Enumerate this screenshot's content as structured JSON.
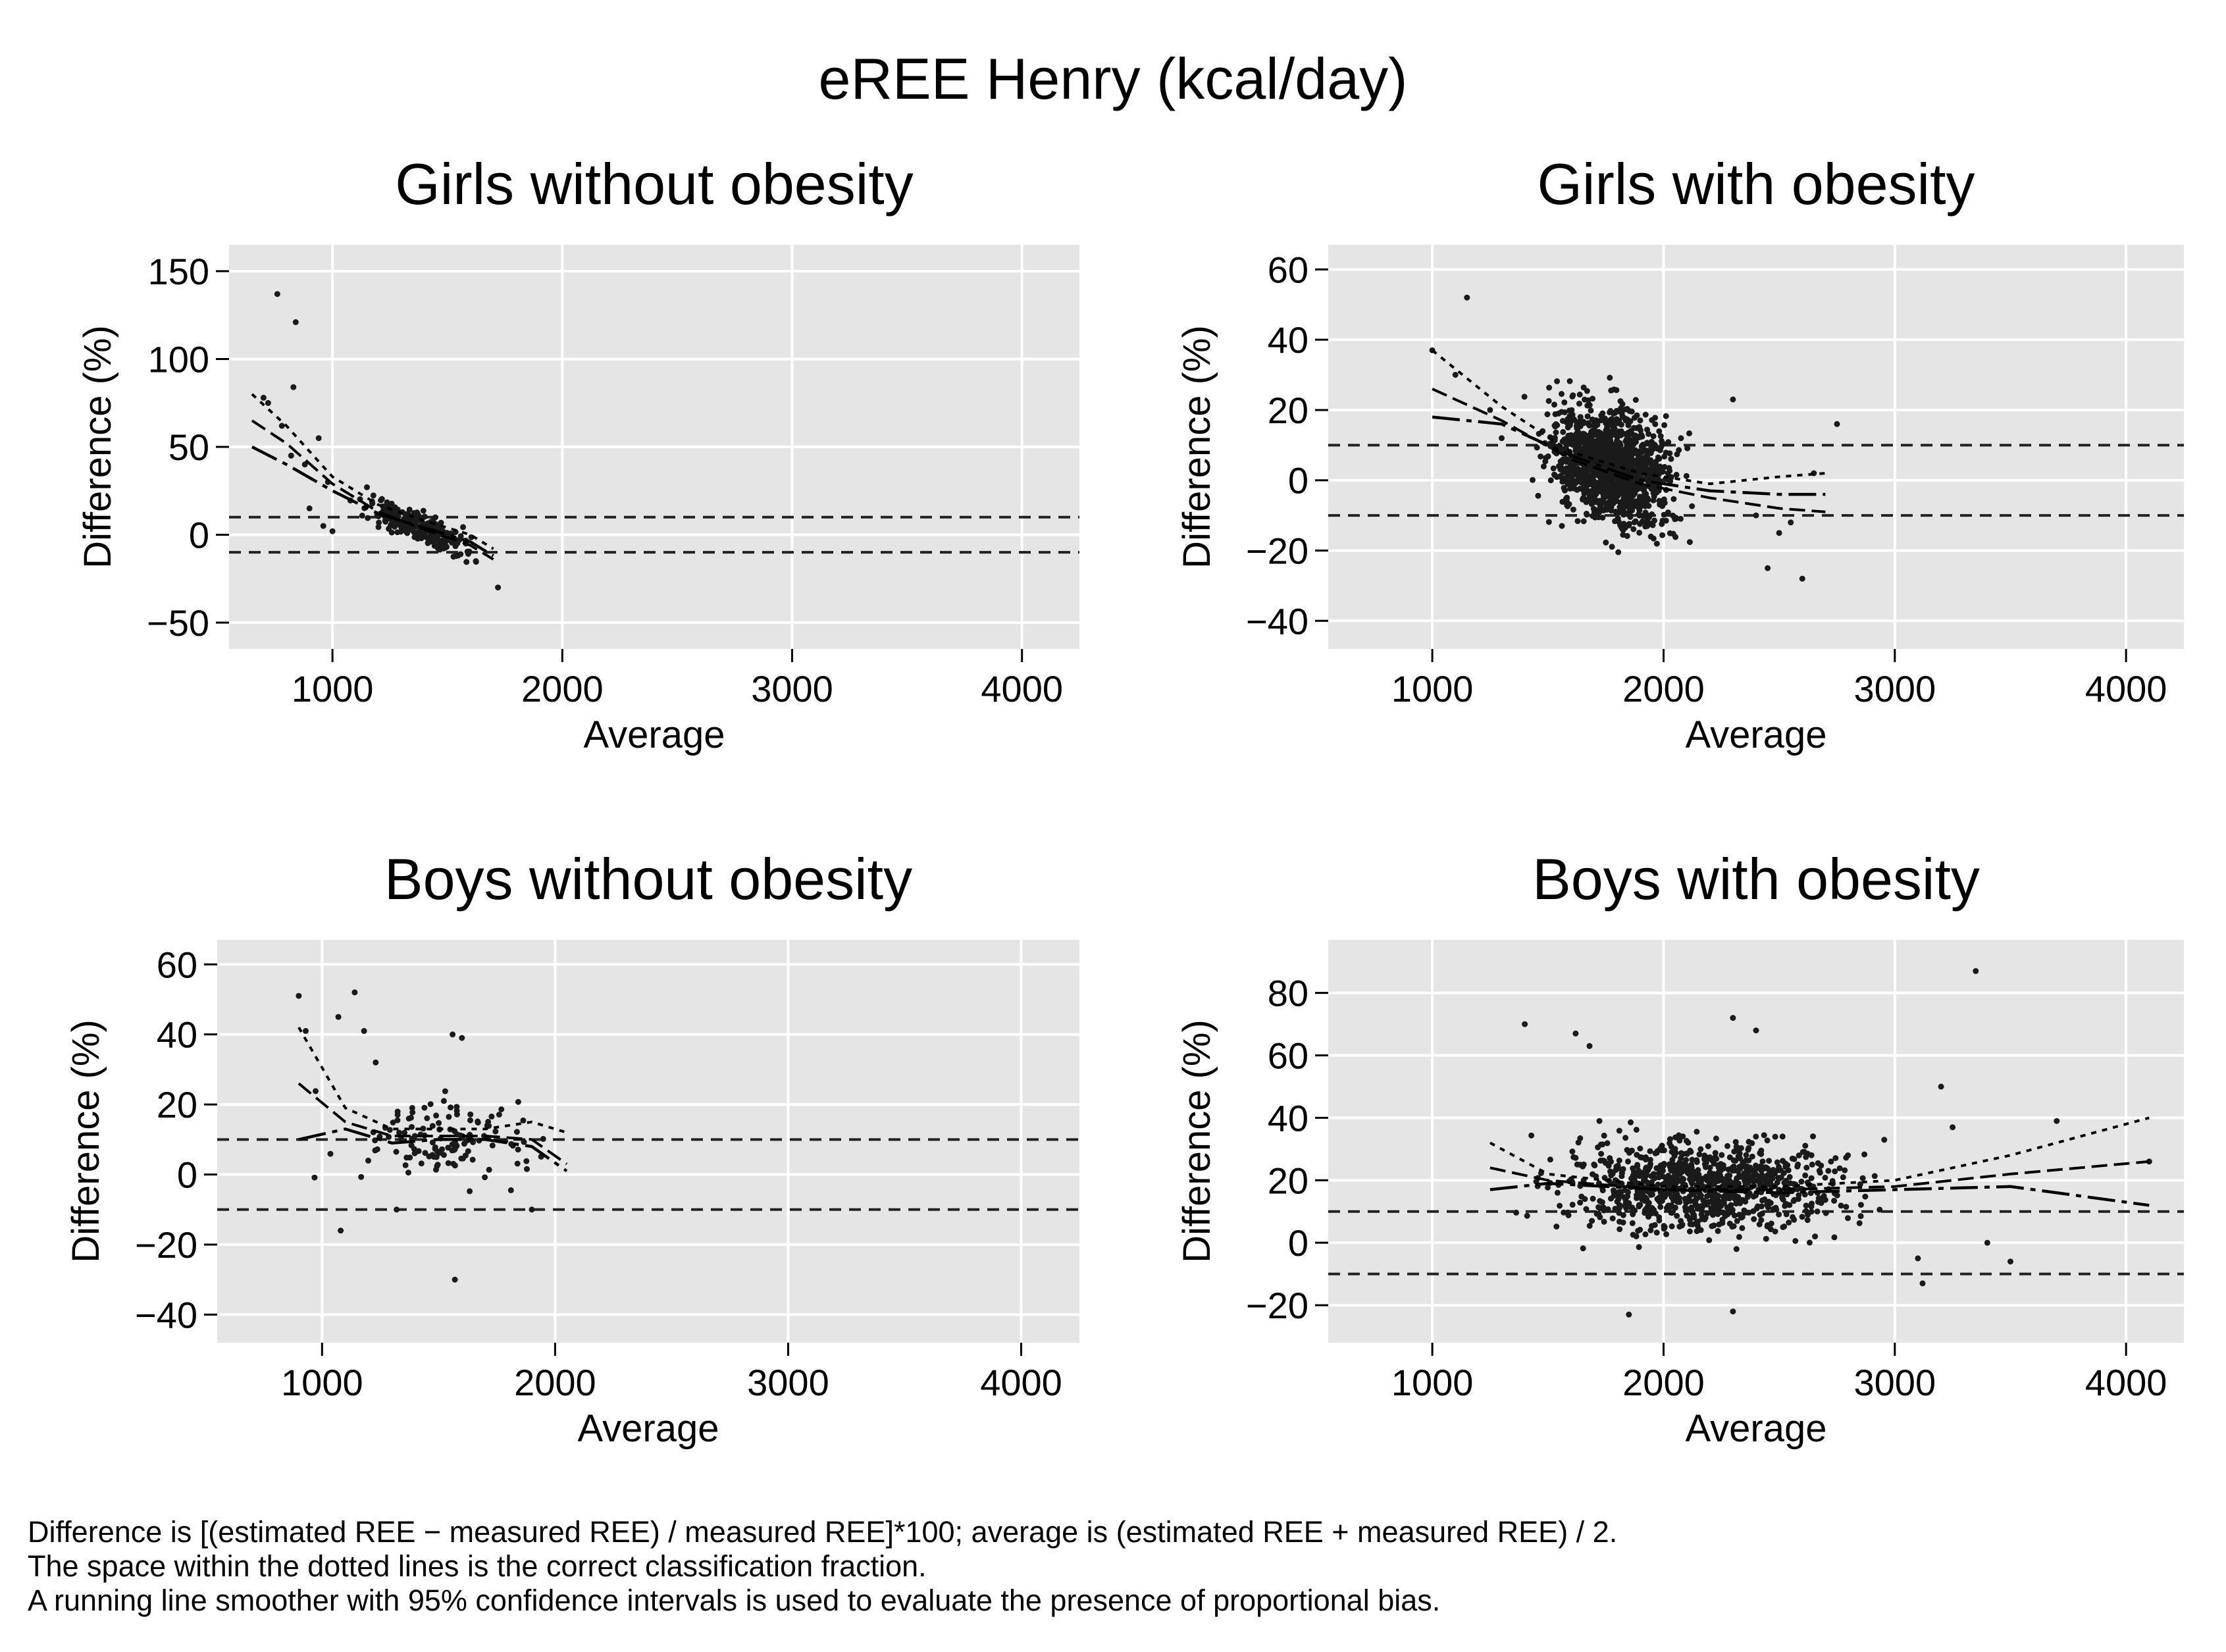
{
  "figure": {
    "title": "eREE Henry (kcal/day)",
    "footnotes": [
      "Difference is [(estimated REE − measured REE) / measured REE]*100; average is (estimated REE + measured REE) / 2.",
      "The space within the dotted lines is the correct classification fraction.",
      "A running line smoother with 95% confidence intervals is used to evaluate the presence of proportional bias."
    ],
    "colors": {
      "plot_bg": "#e5e5e5",
      "grid": "#ffffff",
      "points": "#1a1a1a",
      "lines": "#000000"
    }
  },
  "chart_data": [
    {
      "type": "scatter",
      "title": "Girls without obesity",
      "xlabel": "Average",
      "ylabel": "Difference (%)",
      "xlim": [
        550,
        4250
      ],
      "ylim": [
        -65,
        165
      ],
      "xticks": [
        1000,
        2000,
        3000,
        4000
      ],
      "yticks": [
        -50,
        0,
        50,
        100,
        150
      ],
      "grid": true,
      "reference_lines": [
        10,
        -10
      ],
      "cloud": {
        "n": 260,
        "x_range": [
          1050,
          1680
        ],
        "slope": [
          1350,
          6,
          -0.055
        ],
        "spread": 6
      },
      "outliers": [
        [
          760,
          137
        ],
        [
          840,
          121
        ],
        [
          830,
          84
        ],
        [
          700,
          78
        ],
        [
          720,
          75
        ],
        [
          780,
          62
        ],
        [
          820,
          45
        ],
        [
          880,
          40
        ],
        [
          940,
          55
        ],
        [
          980,
          30
        ],
        [
          1720,
          -30
        ],
        [
          900,
          15
        ],
        [
          960,
          5
        ],
        [
          1000,
          2
        ]
      ],
      "smoother": {
        "x": [
          650,
          800,
          1000,
          1200,
          1400,
          1600,
          1700
        ],
        "y": [
          50,
          40,
          25,
          12,
          4,
          -4,
          -12
        ]
      },
      "ci_upper": {
        "x": [
          650,
          800,
          1000,
          1200,
          1400,
          1600,
          1700
        ],
        "y": [
          80,
          62,
          33,
          17,
          8,
          0,
          -8
        ]
      },
      "ci_lower": {
        "x": [
          650,
          800,
          1000,
          1200,
          1400,
          1600,
          1700
        ],
        "y": [
          65,
          52,
          29,
          13,
          3,
          -6,
          -14
        ]
      }
    },
    {
      "type": "scatter",
      "title": "Girls with obesity",
      "xlabel": "Average",
      "ylabel": "Difference (%)",
      "xlim": [
        550,
        4250
      ],
      "ylim": [
        -48,
        67
      ],
      "xticks": [
        1000,
        2000,
        3000,
        4000
      ],
      "yticks": [
        -40,
        -20,
        0,
        20,
        40,
        60
      ],
      "grid": true,
      "reference_lines": [
        10,
        -10
      ],
      "cloud": {
        "n": 1300,
        "x_range": [
          1400,
          2150
        ],
        "slope": [
          1700,
          5,
          -0.018
        ],
        "spread": 11
      },
      "outliers": [
        [
          1150,
          52
        ],
        [
          1000,
          37
        ],
        [
          1100,
          30
        ],
        [
          1250,
          20
        ],
        [
          1300,
          12
        ],
        [
          2300,
          23
        ],
        [
          2400,
          -10
        ],
        [
          2500,
          -15
        ],
        [
          2600,
          -28
        ],
        [
          2750,
          16
        ],
        [
          2650,
          2
        ],
        [
          2450,
          -25
        ],
        [
          2550,
          -12
        ]
      ],
      "smoother": {
        "x": [
          1000,
          1300,
          1600,
          1900,
          2200,
          2500,
          2700
        ],
        "y": [
          18,
          16,
          7,
          0,
          -3,
          -4,
          -4
        ]
      },
      "ci_upper": {
        "x": [
          1000,
          1300,
          1600,
          1900,
          2200,
          2500,
          2700
        ],
        "y": [
          37,
          21,
          8,
          2,
          -1,
          1,
          2
        ]
      },
      "ci_lower": {
        "x": [
          1000,
          1300,
          1600,
          1900,
          2200,
          2500,
          2700
        ],
        "y": [
          26,
          17,
          6,
          -1,
          -5,
          -8,
          -9
        ]
      }
    },
    {
      "type": "scatter",
      "title": "Boys without obesity",
      "xlabel": "Average",
      "ylabel": "Difference (%)",
      "xlim": [
        550,
        4250
      ],
      "ylim": [
        -48,
        67
      ],
      "xticks": [
        1000,
        2000,
        3000,
        4000
      ],
      "yticks": [
        -40,
        -20,
        0,
        20,
        40,
        60
      ],
      "grid": true,
      "reference_lines": [
        10,
        -10
      ],
      "cloud": {
        "n": 130,
        "x_range": [
          950,
          2050
        ],
        "slope": [
          1500,
          10,
          0
        ],
        "spread": 8
      },
      "outliers": [
        [
          900,
          51
        ],
        [
          930,
          41
        ],
        [
          1070,
          45
        ],
        [
          1140,
          52
        ],
        [
          1180,
          41
        ],
        [
          1560,
          40
        ],
        [
          1600,
          39
        ],
        [
          1230,
          32
        ],
        [
          1080,
          -16
        ],
        [
          1570,
          -30
        ],
        [
          1320,
          -10
        ],
        [
          1900,
          -10
        ]
      ],
      "smoother": {
        "x": [
          900,
          1100,
          1300,
          1500,
          1700,
          1900,
          2050
        ],
        "y": [
          10,
          13,
          9,
          10,
          10,
          8,
          1
        ]
      },
      "ci_upper": {
        "x": [
          900,
          1100,
          1300,
          1500,
          1700,
          1900,
          2050
        ],
        "y": [
          42,
          19,
          13,
          13,
          13,
          15,
          12
        ]
      },
      "ci_lower": {
        "x": [
          900,
          1100,
          1300,
          1500,
          1700,
          1900,
          2050
        ],
        "y": [
          26,
          15,
          11,
          11,
          11,
          10,
          3
        ]
      }
    },
    {
      "type": "scatter",
      "title": "Boys with obesity",
      "xlabel": "Average",
      "ylabel": "Difference (%)",
      "xlim": [
        550,
        4250
      ],
      "ylim": [
        -32,
        97
      ],
      "xticks": [
        1000,
        2000,
        3000,
        4000
      ],
      "yticks": [
        -20,
        0,
        20,
        40,
        60,
        80
      ],
      "grid": true,
      "reference_lines": [
        10,
        -10
      ],
      "cloud": {
        "n": 950,
        "x_range": [
          1300,
          3000
        ],
        "slope": [
          2200,
          18,
          0
        ],
        "spread": 10
      },
      "outliers": [
        [
          3350,
          87
        ],
        [
          1400,
          70
        ],
        [
          1620,
          67
        ],
        [
          1680,
          63
        ],
        [
          2300,
          72
        ],
        [
          2400,
          68
        ],
        [
          3200,
          50
        ],
        [
          3250,
          37
        ],
        [
          3500,
          -6
        ],
        [
          3120,
          -13
        ],
        [
          3700,
          39
        ],
        [
          4100,
          26
        ],
        [
          3400,
          0
        ],
        [
          3100,
          -5
        ],
        [
          1850,
          -23
        ],
        [
          2300,
          -22
        ]
      ],
      "smoother": {
        "x": [
          1250,
          1500,
          2000,
          2500,
          3000,
          3500,
          4100
        ],
        "y": [
          17,
          19,
          17,
          16,
          17,
          18,
          12
        ]
      },
      "ci_upper": {
        "x": [
          1250,
          1500,
          2000,
          2500,
          3000,
          3500,
          4100
        ],
        "y": [
          32,
          22,
          18,
          18,
          20,
          28,
          40
        ]
      },
      "ci_lower": {
        "x": [
          1250,
          1500,
          2000,
          2500,
          3000,
          3500,
          4100
        ],
        "y": [
          24,
          20,
          17,
          17,
          18,
          22,
          26
        ]
      }
    }
  ]
}
